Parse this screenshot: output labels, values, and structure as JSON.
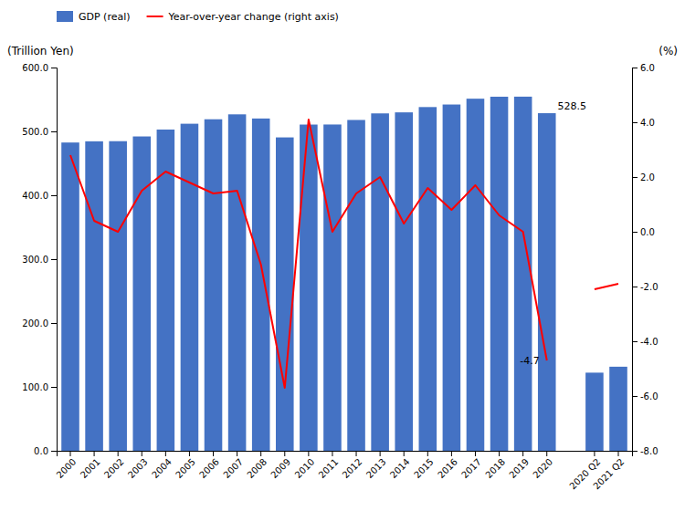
{
  "chart_data": {
    "type": "bar",
    "y_label": "(Trillion Yen)",
    "y2_label": "(%)",
    "categories": [
      "2000",
      "2001",
      "2002",
      "2003",
      "2004",
      "2005",
      "2006",
      "2007",
      "2008",
      "2009",
      "2010",
      "2011",
      "2012",
      "2013",
      "2014",
      "2015",
      "2016",
      "2017",
      "2018",
      "2019",
      "2020",
      null,
      "2020 Q2",
      "2021 Q2"
    ],
    "series": [
      {
        "name": "GDP (real)",
        "type": "bar",
        "color": "#4472C4",
        "values": [
          482.6,
          484.5,
          484.7,
          492.1,
          502.9,
          512.0,
          519.0,
          526.7,
          520.2,
          490.6,
          510.7,
          510.8,
          517.9,
          528.2,
          529.8,
          538.1,
          542.1,
          551.2,
          554.3,
          554.4,
          528.5,
          null,
          122.3,
          131.6
        ]
      },
      {
        "name": "Year-over-year change (right axis)",
        "type": "line",
        "color": "#FF0000",
        "axis": "y2",
        "values": [
          2.8,
          0.4,
          0.0,
          1.5,
          2.2,
          1.8,
          1.4,
          1.5,
          -1.2,
          -5.7,
          4.1,
          0.0,
          1.4,
          2.0,
          0.3,
          1.6,
          0.8,
          1.7,
          0.6,
          0.0,
          -4.7,
          null,
          -2.1,
          -1.9
        ]
      }
    ],
    "ylim": [
      0,
      600
    ],
    "yticks": [
      {
        "value": 0,
        "label": "0.0"
      },
      {
        "value": 100,
        "label": "100.0"
      },
      {
        "value": 200,
        "label": "200.0"
      },
      {
        "value": 300,
        "label": "300.0"
      },
      {
        "value": 400,
        "label": "400.0"
      },
      {
        "value": 500,
        "label": "500.0"
      },
      {
        "value": 600,
        "label": "600.0"
      }
    ],
    "y2lim": [
      -8.0,
      6.0
    ],
    "y2ticks": [
      {
        "value": -8,
        "label": "-8.0"
      },
      {
        "value": -6,
        "label": "-6.0"
      },
      {
        "value": -4,
        "label": "-4.0"
      },
      {
        "value": -2,
        "label": "-2.0"
      },
      {
        "value": 0,
        "label": "0.0"
      },
      {
        "value": 2,
        "label": "2.0"
      },
      {
        "value": 4,
        "label": "4.0"
      },
      {
        "value": 6,
        "label": "6.0"
      }
    ],
    "annotations": [
      {
        "text": "528.5",
        "x": "2020",
        "y": 528.5
      },
      {
        "text": "-4.7",
        "x": "2020",
        "y": -4.7,
        "axis": "y2"
      }
    ],
    "legend": "upper left",
    "grid": false
  }
}
